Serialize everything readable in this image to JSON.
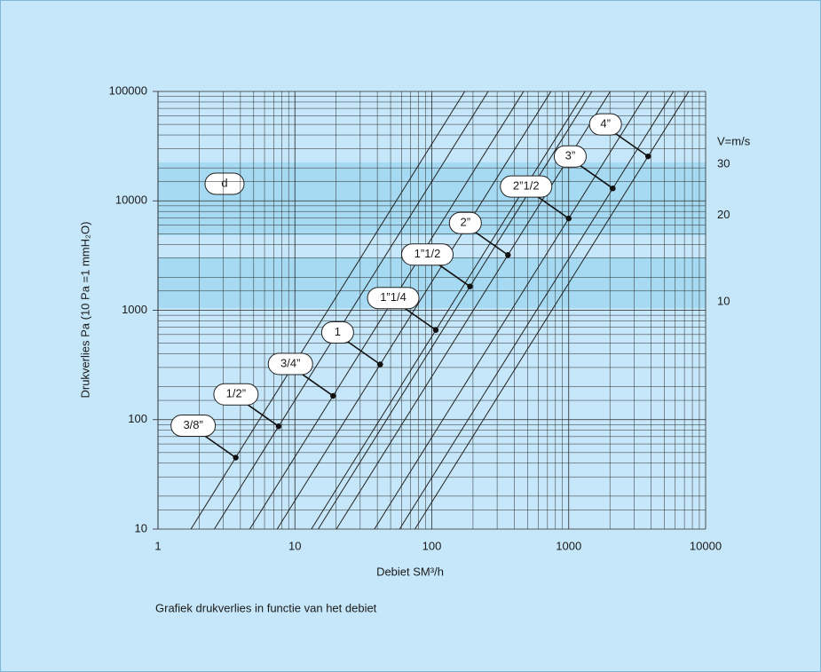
{
  "chart_data": {
    "type": "line",
    "xlabel": "Debiet SM³/h",
    "ylabel": "Drukverlies Pa (10 Pa =1 mmH₂O)",
    "caption": "Grafiek drukverlies in functie van het debiet",
    "annotation": "d",
    "y2label": "V=m/s",
    "xscale": "log",
    "yscale": "log",
    "y2scale": "log",
    "xlim": [
      1,
      10000
    ],
    "ylim": [
      10,
      100000
    ],
    "y2lim": [
      1.63,
      53.7
    ],
    "xticks": [
      1,
      10,
      100,
      1000,
      10000
    ],
    "yticks": [
      10,
      100,
      1000,
      10000,
      100000
    ],
    "y2ticks": [
      10,
      20,
      30
    ],
    "grid": true,
    "minor_grid": true,
    "color": "#222222",
    "series": [
      {
        "name": "3/8”",
        "x": [
          1.74,
          174
        ],
        "values": [
          10,
          100000
        ],
        "marker": {
          "x": 3.7,
          "value": 45
        }
      },
      {
        "name": "1/2”",
        "x": [
          2.58,
          258
        ],
        "values": [
          10,
          100000
        ],
        "marker": {
          "x": 7.6,
          "value": 87
        }
      },
      {
        "name": "3/4”",
        "x": [
          4.68,
          468
        ],
        "values": [
          10,
          100000
        ],
        "marker": {
          "x": 19,
          "value": 165
        }
      },
      {
        "name": "1",
        "x": [
          7.42,
          742
        ],
        "values": [
          10,
          100000
        ],
        "marker": {
          "x": 42,
          "value": 320
        }
      },
      {
        "name": "1”1/4",
        "x": [
          13.2,
          1317
        ],
        "values": [
          10,
          100000
        ],
        "marker": {
          "x": 107,
          "value": 660
        }
      },
      {
        "name": "1”1/2",
        "x": [
          14.8,
          1479
        ],
        "values": [
          10,
          100000
        ],
        "marker": {
          "x": 190,
          "value": 1650
        }
      },
      {
        "name": "2”",
        "x": [
          20.1,
          2012
        ],
        "values": [
          10,
          100000
        ],
        "marker": {
          "x": 360,
          "value": 3200
        }
      },
      {
        "name": "2”1/2",
        "x": [
          38.1,
          3807
        ],
        "values": [
          10,
          100000
        ],
        "marker": {
          "x": 1000,
          "value": 6900
        }
      },
      {
        "name": "3”",
        "x": [
          58.2,
          5825
        ],
        "values": [
          10,
          100000
        ],
        "marker": {
          "x": 2100,
          "value": 13000
        }
      },
      {
        "name": "4”",
        "x": [
          75.3,
          7525
        ],
        "values": [
          10,
          100000
        ],
        "marker": {
          "x": 3800,
          "value": 25500
        }
      }
    ]
  }
}
